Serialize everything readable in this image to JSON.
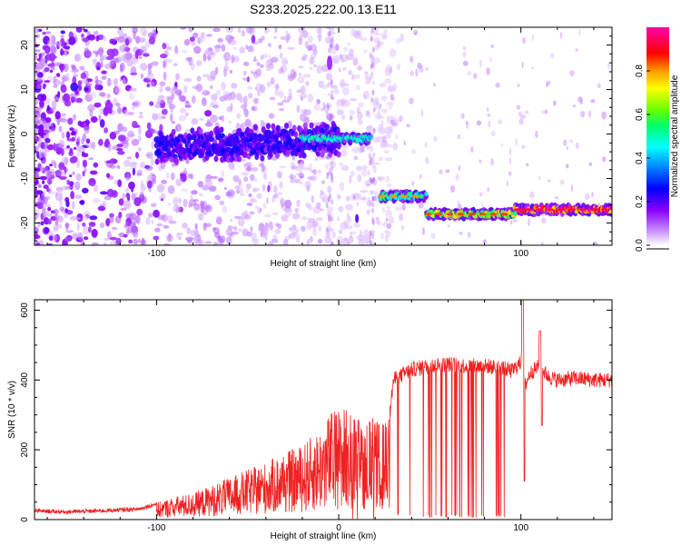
{
  "title": "S233.2025.222.00.13.E11",
  "colors": {
    "snr_line": "#ee2222",
    "frame": "#000000",
    "colorbar": [
      "#ff00ff",
      "#ff0000",
      "#ff8800",
      "#ffff00",
      "#00ff00",
      "#00ffff",
      "#0066ff",
      "#0000ff",
      "#8800ff",
      "#ffffff"
    ]
  },
  "chart_data": [
    {
      "type": "heatmap",
      "title": "S233.2025.222.00.13.E11",
      "xlabel": "Height of straight line (km)",
      "ylabel": "Frequency (Hz)",
      "xlim": [
        -167,
        150
      ],
      "ylim": [
        -25,
        24
      ],
      "xticks": [
        -100,
        0,
        100
      ],
      "xtick_labels": [
        "-100",
        "0",
        "100"
      ],
      "yticks": [
        20,
        10,
        0,
        -10,
        -20
      ],
      "ytick_labels": [
        "20",
        "10",
        "0",
        "-10",
        "-20"
      ],
      "colorbar": {
        "label": "Normalized spectral amplitude",
        "range": [
          0,
          1
        ],
        "ticks": [
          0,
          0.2,
          0.4,
          0.6,
          0.8
        ],
        "tick_labels": [
          "0.0",
          "0.2",
          "0.4",
          "0.6",
          "0.8"
        ]
      },
      "ridge_segments": [
        {
          "x_start": -100,
          "x_end": 0,
          "freq_start": -3,
          "freq_end": -1,
          "amplitude": 0.25
        },
        {
          "x_start": -20,
          "x_end": 17,
          "freq_start": -1,
          "freq_end": -1,
          "amplitude": 0.5
        },
        {
          "x_start": 23,
          "x_end": 48,
          "freq_start": -14,
          "freq_end": -14,
          "amplitude": 0.55
        },
        {
          "x_start": 48,
          "x_end": 97,
          "freq_start": -18,
          "freq_end": -18,
          "amplitude": 0.7
        },
        {
          "x_start": 97,
          "x_end": 150,
          "freq_start": -17,
          "freq_end": -17,
          "amplitude": 0.95
        }
      ]
    },
    {
      "type": "line",
      "xlabel": "Height of straight line (km)",
      "ylabel": "SNR (10 * v/v)",
      "xlim": [
        -167,
        150
      ],
      "ylim": [
        0,
        630
      ],
      "xticks": [
        -100,
        0,
        100
      ],
      "xtick_labels": [
        "-100",
        "0",
        "100"
      ],
      "yticks": [
        0,
        200,
        400,
        600
      ],
      "ytick_labels": [
        "0",
        "200",
        "400",
        "600"
      ],
      "series": [
        {
          "name": "SNR",
          "x": [
            -167,
            -150,
            -130,
            -110,
            -100,
            -90,
            -80,
            -70,
            -60,
            -50,
            -40,
            -30,
            -20,
            -10,
            -5,
            0,
            5,
            10,
            15,
            20,
            25,
            28,
            30,
            40,
            50,
            60,
            70,
            80,
            90,
            95,
            100,
            101,
            102,
            105,
            110,
            115,
            120,
            130,
            140,
            150
          ],
          "values": [
            25,
            22,
            25,
            30,
            45,
            60,
            70,
            90,
            110,
            130,
            150,
            175,
            195,
            240,
            280,
            290,
            300,
            265,
            280,
            260,
            250,
            300,
            400,
            430,
            440,
            445,
            440,
            440,
            435,
            425,
            450,
            600,
            380,
            420,
            440,
            410,
            400,
            405,
            400,
            400
          ]
        }
      ]
    }
  ]
}
